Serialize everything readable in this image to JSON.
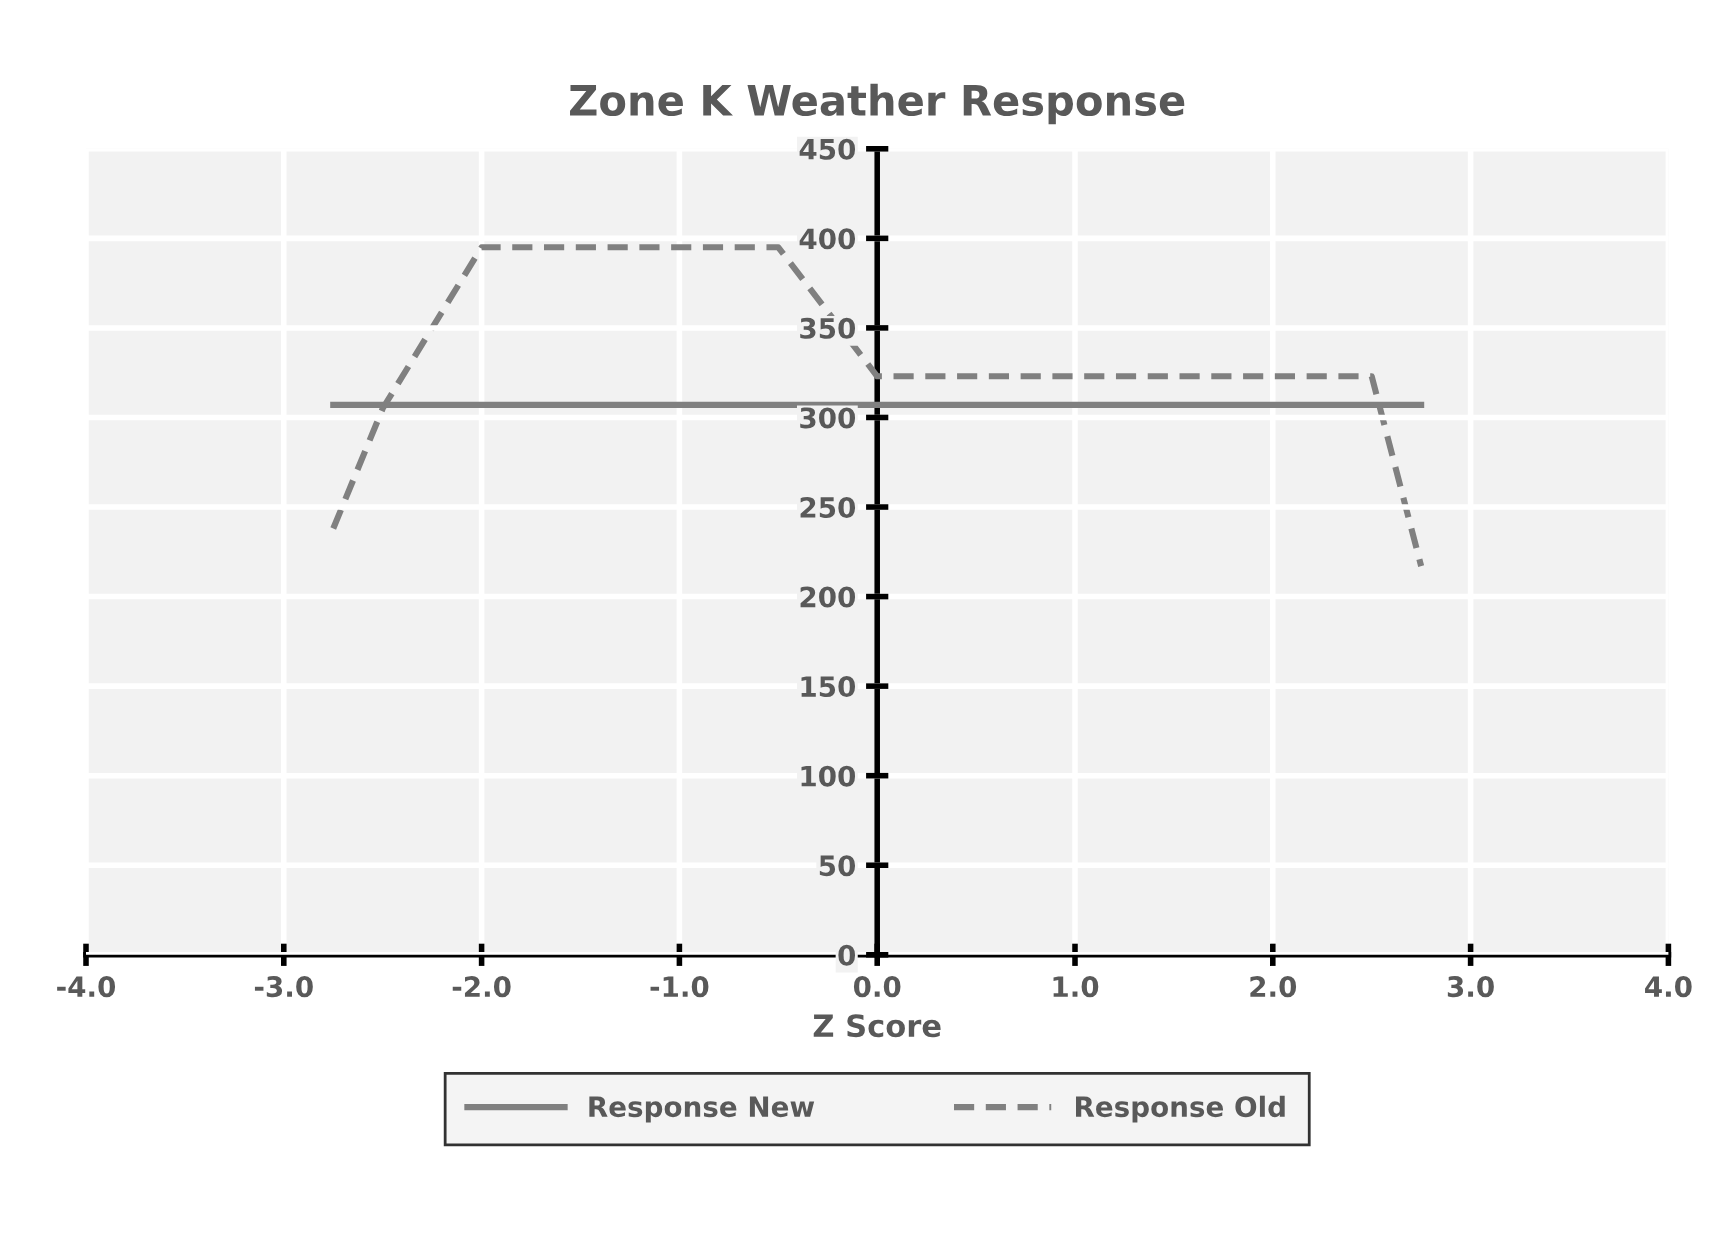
{
  "chart_data": {
    "type": "line",
    "title": "Zone K Weather Response",
    "xlabel": "Z Score",
    "xlim": [
      -4,
      4
    ],
    "xticks": [
      {
        "value": -4,
        "label": "-4.0"
      },
      {
        "value": -3,
        "label": "-3.0"
      },
      {
        "value": -2,
        "label": "-2.0"
      },
      {
        "value": -1,
        "label": "-1.0"
      },
      {
        "value": 0,
        "label": "0.0"
      },
      {
        "value": 1,
        "label": "1.0"
      },
      {
        "value": 2,
        "label": "2.0"
      },
      {
        "value": 3,
        "label": "3.0"
      },
      {
        "value": 4,
        "label": "4.0"
      }
    ],
    "ylim": [
      0,
      450
    ],
    "yticks": [
      0,
      50,
      100,
      150,
      200,
      250,
      300,
      350,
      400,
      450
    ],
    "grid": true,
    "legend": "bottom",
    "marker": "none",
    "series": [
      {
        "name": "Response New",
        "color": "#808080",
        "line_style": "solid",
        "x": [
          -2.75,
          2.75
        ],
        "values": [
          307,
          307
        ]
      },
      {
        "name": "Response Old",
        "color": "#808080",
        "line_style": "dashed",
        "x": [
          -2.75,
          -2.5,
          -2,
          -0.5,
          0,
          2.5,
          2.75
        ],
        "values": [
          238,
          305,
          395,
          395,
          323,
          323,
          217
        ]
      }
    ]
  }
}
